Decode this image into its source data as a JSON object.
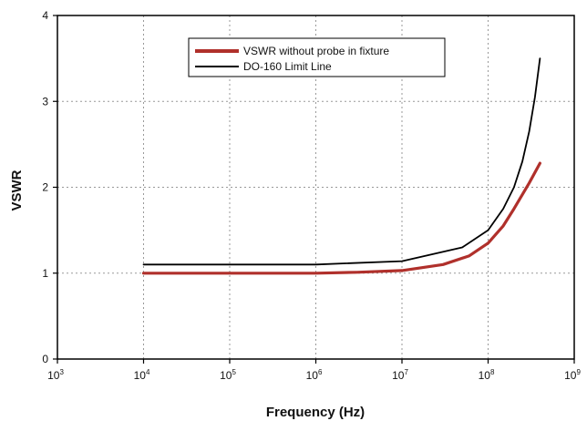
{
  "chart_data": {
    "type": "line",
    "xlabel": "Frequency (Hz)",
    "ylabel": "VSWR",
    "x_scale": "log",
    "xlim": [
      1000,
      1000000000
    ],
    "ylim": [
      0,
      4
    ],
    "x_ticks": [
      {
        "value": 1000,
        "base": "10",
        "exp": "3"
      },
      {
        "value": 10000,
        "base": "10",
        "exp": "4"
      },
      {
        "value": 100000,
        "base": "10",
        "exp": "5"
      },
      {
        "value": 1000000,
        "base": "10",
        "exp": "6"
      },
      {
        "value": 10000000,
        "base": "10",
        "exp": "7"
      },
      {
        "value": 100000000,
        "base": "10",
        "exp": "8"
      },
      {
        "value": 1000000000,
        "base": "10",
        "exp": "9"
      }
    ],
    "y_ticks": [
      {
        "value": 0,
        "label": "0"
      },
      {
        "value": 1,
        "label": "1"
      },
      {
        "value": 2,
        "label": "2"
      },
      {
        "value": 3,
        "label": "3"
      },
      {
        "value": 4,
        "label": "4"
      }
    ],
    "grid": true,
    "legend_position": "top-center",
    "series": [
      {
        "name": "VSWR without probe in fixture",
        "color": "#b0302b",
        "x": [
          10000,
          100000,
          1000000,
          3000000,
          10000000,
          30000000,
          60000000,
          100000000,
          150000000,
          200000000,
          300000000,
          400000000
        ],
        "y": [
          1.0,
          1.0,
          1.0,
          1.01,
          1.03,
          1.1,
          1.2,
          1.35,
          1.55,
          1.75,
          2.05,
          2.28
        ]
      },
      {
        "name": "DO-160 Limit Line",
        "color": "#000000",
        "x": [
          10000,
          1000000,
          10000000,
          50000000,
          100000000,
          150000000,
          200000000,
          250000000,
          300000000,
          350000000,
          400000000
        ],
        "y": [
          1.1,
          1.1,
          1.14,
          1.3,
          1.5,
          1.75,
          2.0,
          2.3,
          2.65,
          3.05,
          3.5
        ]
      }
    ]
  }
}
